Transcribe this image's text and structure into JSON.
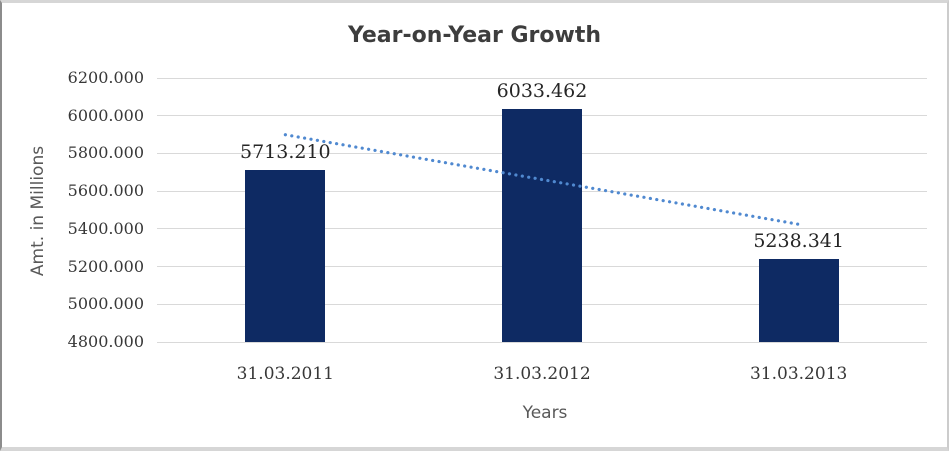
{
  "chart_data": {
    "type": "bar",
    "title": "Year-on-Year Growth",
    "xlabel": "Years",
    "ylabel": "Amt. in Millions",
    "categories": [
      "31.03.2011",
      "31.03.2012",
      "31.03.2013"
    ],
    "values": [
      5713.21,
      6033.462,
      5238.341
    ],
    "data_labels": [
      "5713.210",
      "6033.462",
      "5238.341"
    ],
    "yticks": [
      "6200.000",
      "6000.000",
      "5800.000",
      "5600.000",
      "5400.000",
      "5200.000",
      "5000.000",
      "4800.000"
    ],
    "ylim": [
      4800,
      6200
    ],
    "ytick_step": 200,
    "grid": true,
    "legend": "none",
    "bar_color": "#0e2a63",
    "trendline": {
      "kind": "linear",
      "style": "dotted",
      "color": "#5089d0",
      "start_value": 5899.1,
      "end_value": 5424.2
    }
  }
}
